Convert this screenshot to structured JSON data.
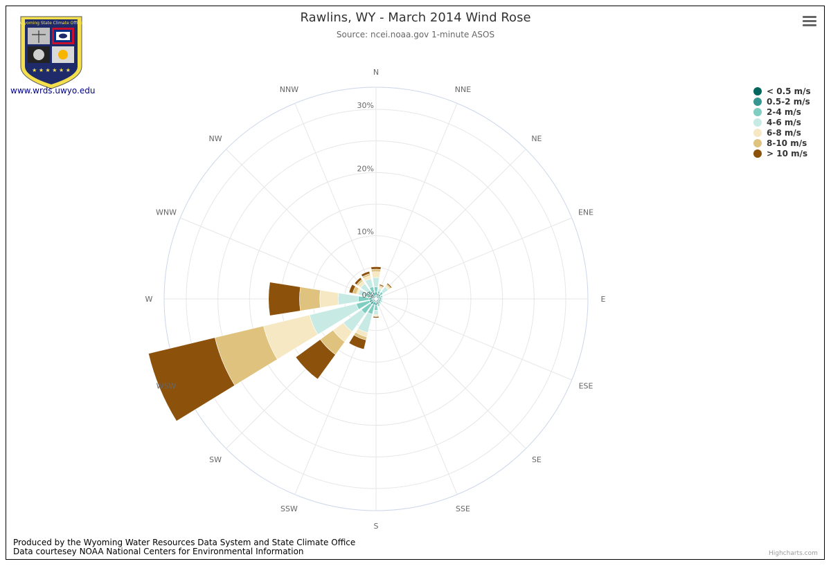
{
  "header": {
    "title": "Rawlins, WY - March 2014 Wind Rose",
    "subtitle": "Source: ncei.noaa.gov 1-minute ASOS"
  },
  "logo": {
    "banner_text": "Wyoming State Climate Office",
    "link_text": "www.wrds.uwyo.edu"
  },
  "footer": {
    "line1": "Produced by the Wyoming Water Resources Data System and State Climate Office",
    "line2": "Data courtesey NOAA National Centers for Environmental Information",
    "credits": "Highcharts.com"
  },
  "menu": {
    "icon": "hamburger-menu-icon"
  },
  "colors": {
    "grid": "#e6e6e6",
    "outer_ring": "#ccd6eb"
  },
  "chart_data": {
    "type": "bar",
    "polar": true,
    "stacked": true,
    "categories": [
      "N",
      "NNE",
      "NE",
      "ENE",
      "E",
      "ESE",
      "SE",
      "SSE",
      "S",
      "SSW",
      "SW",
      "WSW",
      "W",
      "WNW",
      "NW",
      "NNW"
    ],
    "ytick_labels": [
      "0%",
      "10%",
      "20%",
      "30%"
    ],
    "yticks": [
      0,
      10,
      20,
      30
    ],
    "ylim": [
      0,
      33.5
    ],
    "legend_position": "top-right",
    "series": [
      {
        "name": "< 0.5 m/s",
        "color": "#01665e",
        "values": [
          0.5,
          0.5,
          0.5,
          0.5,
          0.5,
          0.5,
          0.5,
          0.5,
          0.5,
          0.5,
          0.5,
          0.5,
          0.5,
          0.5,
          0.5,
          0.5
        ]
      },
      {
        "name": "0.5-2 m/s",
        "color": "#35978f",
        "values": [
          0.6,
          0.4,
          0.4,
          0.3,
          0.3,
          0.3,
          0.3,
          0.4,
          0.5,
          0.5,
          0.6,
          0.6,
          0.6,
          0.5,
          0.5,
          0.6
        ]
      },
      {
        "name": "2-4 m/s",
        "color": "#80cdc1",
        "values": [
          0.8,
          0.4,
          0.5,
          0.3,
          0.2,
          0.2,
          0.2,
          0.3,
          0.8,
          1.5,
          1.8,
          2.1,
          1.7,
          0.9,
          0.7,
          0.9
        ]
      },
      {
        "name": "4-6 m/s",
        "color": "#c7eae5",
        "values": [
          1.5,
          0.4,
          1.0,
          0.1,
          0.1,
          0.1,
          0.1,
          0.1,
          0.7,
          3.0,
          3.5,
          7.6,
          3.2,
          1.0,
          1.3,
          1.3
        ]
      },
      {
        "name": "6-8 m/s",
        "color": "#f6e8c3",
        "values": [
          0.9,
          0.3,
          0.3,
          0.0,
          0.0,
          0.0,
          0.0,
          0.0,
          0.2,
          0.7,
          2.0,
          7.5,
          2.9,
          0.3,
          0.5,
          0.5
        ]
      },
      {
        "name": "8-10 m/s",
        "color": "#dfc27d",
        "values": [
          0.4,
          0.2,
          0.2,
          0.0,
          0.0,
          0.0,
          0.0,
          0.0,
          0.1,
          0.5,
          2.5,
          7.9,
          3.2,
          0.6,
          0.3,
          0.3
        ]
      },
      {
        "name": "> 10 m/s",
        "color": "#8c510a",
        "values": [
          0.4,
          0.2,
          0.2,
          0.0,
          0.0,
          0.0,
          0.0,
          0.0,
          0.2,
          1.5,
          4.8,
          10.8,
          4.9,
          0.6,
          0.4,
          0.4
        ]
      }
    ]
  }
}
